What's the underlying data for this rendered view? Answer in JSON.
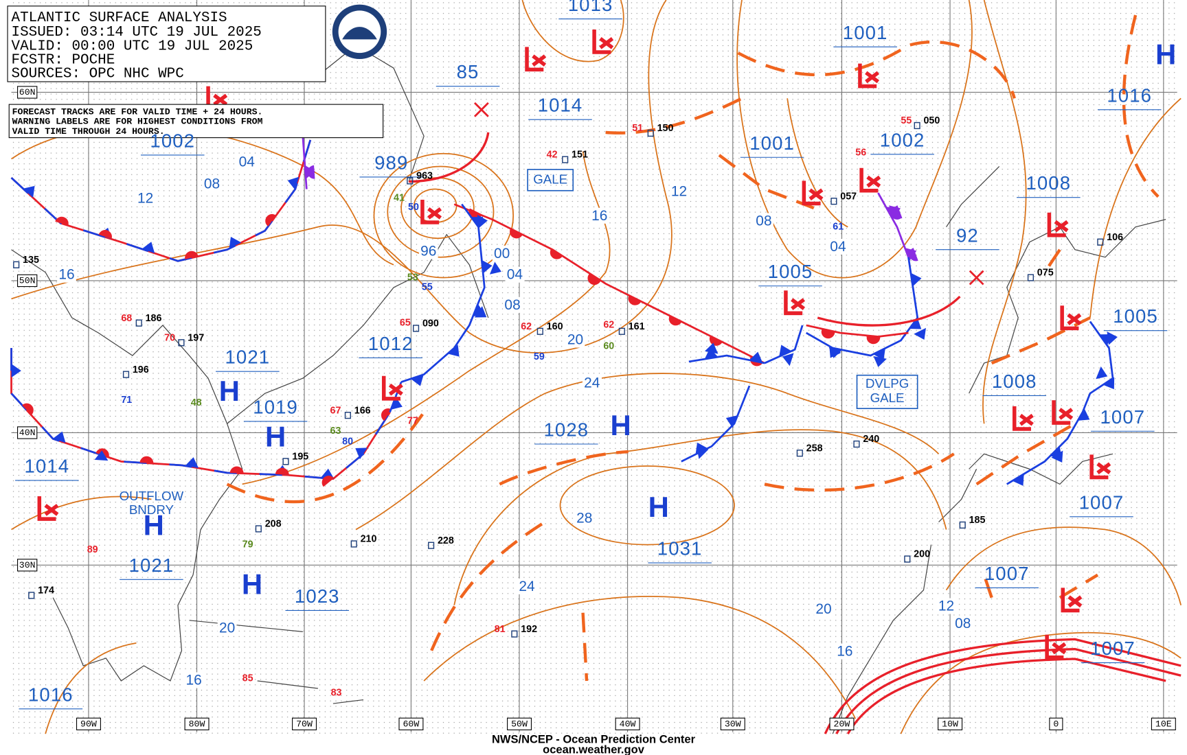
{
  "header": {
    "title": "ATLANTIC SURFACE ANALYSIS",
    "issued": "ISSUED: 03:14 UTC 19 JUL 2025",
    "valid": "VALID:  00:00 UTC 19 JUL 2025",
    "forecaster": "FCSTR:  POCHE",
    "sources": "SOURCES: OPC NHC WPC"
  },
  "notes": [
    "FORECAST TRACKS ARE FOR VALID TIME + 24 HOURS.",
    "WARNING LABELS ARE FOR HIGHEST CONDITIONS FROM",
    "VALID TIME THROUGH 24 HOURS."
  ],
  "latitudes": [
    "60N",
    "50N",
    "40N",
    "30N"
  ],
  "longitudes": [
    "90W",
    "80W",
    "70W",
    "60W",
    "50W",
    "40W",
    "30W",
    "20W",
    "10W",
    "0",
    "10E"
  ],
  "pressure_centers": [
    "1013",
    "1001",
    "1016",
    "85",
    "1014",
    "989",
    "1001",
    "1002",
    "1002",
    "1008",
    "92",
    "1005",
    "1005",
    "1012",
    "1021",
    "1019",
    "1028",
    "1008",
    "1007",
    "1014",
    "1021",
    "1031",
    "1007",
    "1023",
    "1007",
    "1007",
    "1016"
  ],
  "isobar_labels": [
    "04",
    "08",
    "12",
    "16",
    "16",
    "12",
    "08",
    "04",
    "00",
    "04",
    "08",
    "20",
    "24",
    "28",
    "24",
    "20",
    "16",
    "12",
    "08",
    "20",
    "16",
    "96"
  ],
  "highs": [
    "H",
    "H",
    "H",
    "H",
    "H",
    "H",
    "H"
  ],
  "boxed_labels": [
    "GALE",
    "DVLPG",
    "GALE",
    "OUTFLOW",
    "BNDRY"
  ],
  "stations": [
    "963",
    "151",
    "150",
    "160",
    "161",
    "258",
    "240",
    "228",
    "210",
    "192",
    "185",
    "200",
    "208",
    "186",
    "197",
    "196",
    "166",
    "195",
    "174",
    "135",
    "075",
    "106",
    "050",
    "057",
    "090",
    "42",
    "51",
    "55",
    "56",
    "62",
    "62",
    "65",
    "67",
    "68",
    "70",
    "77",
    "81",
    "83",
    "85",
    "89",
    "41",
    "53",
    "60",
    "63",
    "79",
    "48",
    "50",
    "55",
    "59",
    "61",
    "71",
    "80"
  ],
  "footer": {
    "source": "NWS/NCEP - Ocean Prediction Center",
    "site": "ocean.weather.gov"
  }
}
